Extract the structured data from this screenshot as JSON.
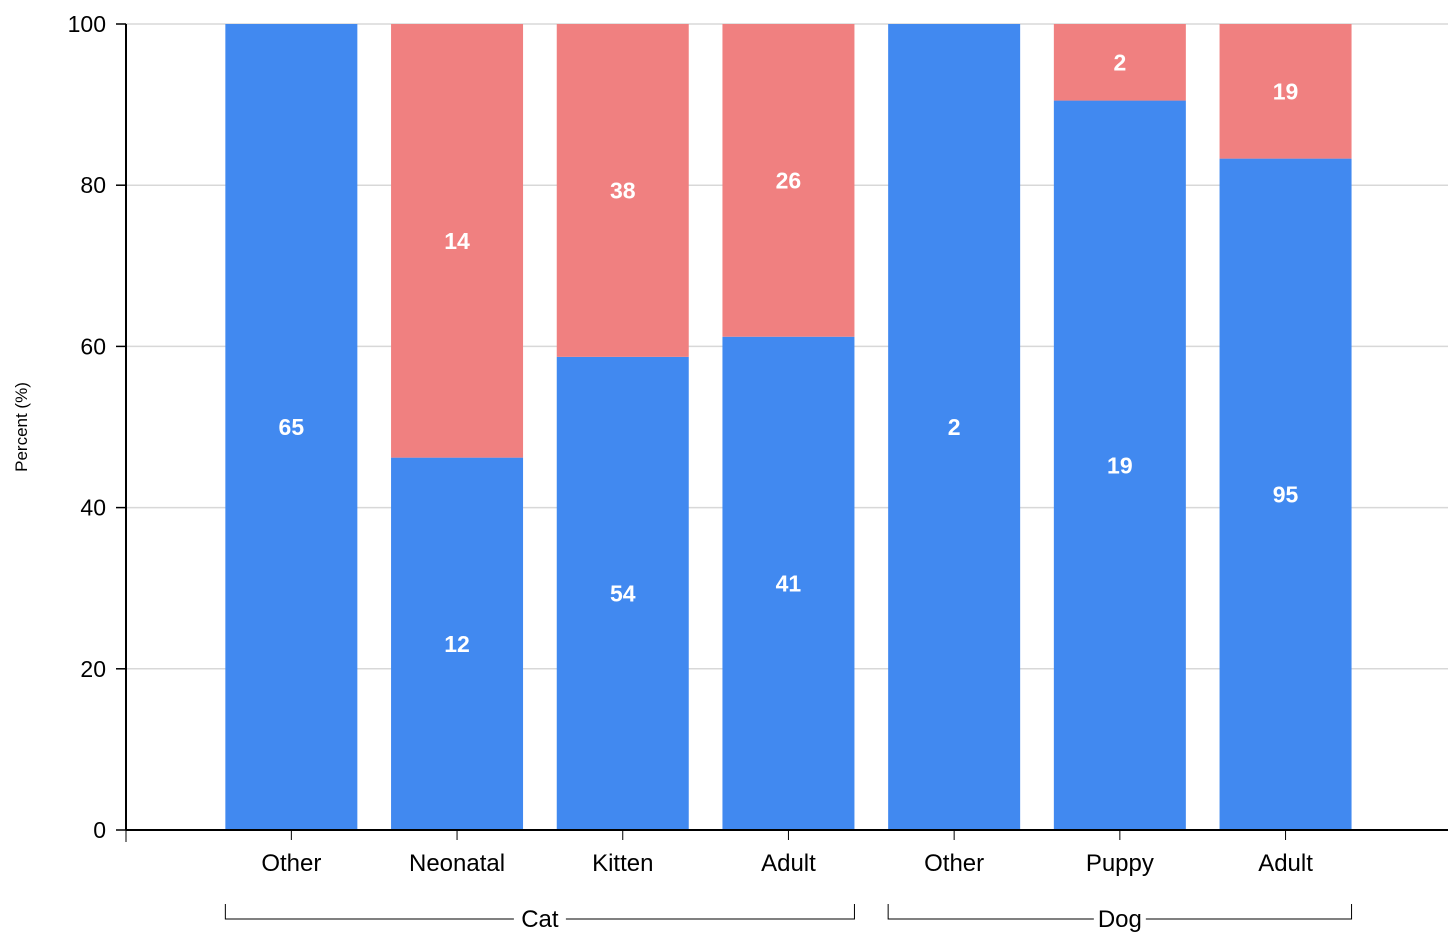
{
  "chart_data": {
    "type": "bar",
    "stacked": true,
    "normalized": true,
    "ylabel": "Percent (%)",
    "ylim": [
      0,
      100
    ],
    "yticks": [
      0,
      20,
      40,
      60,
      80,
      100
    ],
    "grid": true,
    "groups": [
      {
        "label": "Cat",
        "categories": [
          {
            "label": "Other",
            "segments": [
              {
                "value": 65,
                "percent": 100,
                "color": "#4189f0"
              }
            ]
          },
          {
            "label": "Neonatal",
            "segments": [
              {
                "value": 12,
                "percent": 46.2,
                "color": "#4189f0"
              },
              {
                "value": 14,
                "percent": 53.8,
                "color": "#f08080"
              }
            ]
          },
          {
            "label": "Kitten",
            "segments": [
              {
                "value": 54,
                "percent": 58.7,
                "color": "#4189f0"
              },
              {
                "value": 38,
                "percent": 41.3,
                "color": "#f08080"
              }
            ]
          },
          {
            "label": "Adult",
            "segments": [
              {
                "value": 41,
                "percent": 61.2,
                "color": "#4189f0"
              },
              {
                "value": 26,
                "percent": 38.8,
                "color": "#f08080"
              }
            ]
          }
        ]
      },
      {
        "label": "Dog",
        "categories": [
          {
            "label": "Other",
            "segments": [
              {
                "value": 2,
                "percent": 100,
                "color": "#4189f0"
              }
            ]
          },
          {
            "label": "Puppy",
            "segments": [
              {
                "value": 19,
                "percent": 90.5,
                "color": "#4189f0"
              },
              {
                "value": 2,
                "percent": 9.5,
                "color": "#f08080"
              }
            ]
          },
          {
            "label": "Adult",
            "segments": [
              {
                "value": 95,
                "percent": 83.3,
                "color": "#4189f0"
              },
              {
                "value": 19,
                "percent": 16.7,
                "color": "#f08080"
              }
            ]
          }
        ]
      }
    ]
  }
}
